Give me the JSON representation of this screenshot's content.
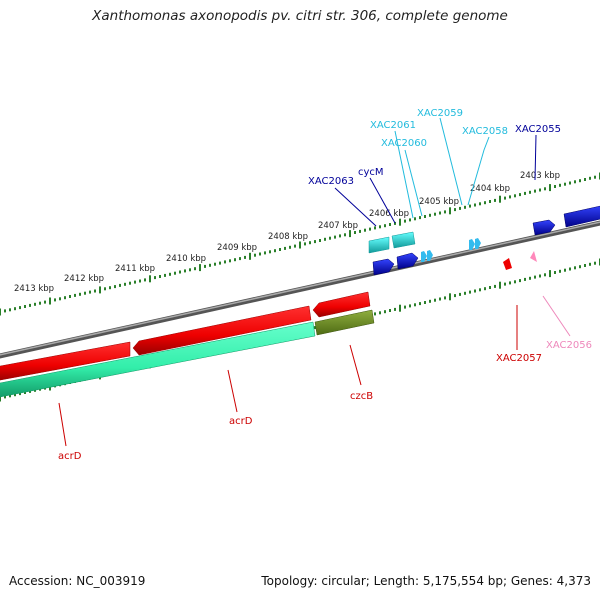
{
  "title": "Xanthomonas axonopodis pv. citri str. 306, complete genome",
  "footer": {
    "accession": "Accession: NC_003919",
    "topology": "Topology: circular; Length: 5,175,554 bp; Genes: 4,373"
  },
  "colors": {
    "backbone": "#808080",
    "tick": "#2a7f2a",
    "red": "#ee0000",
    "darkred": "#aa0000",
    "green": "#33eeaa",
    "olive": "#6b8e23",
    "cyan": "#22dddd",
    "blue": "#0000dd",
    "lightblue": "#33bbee",
    "pink": "#ff88bb",
    "label_blue": "#000099",
    "label_cyan": "#22bbdd",
    "label_red": "#cc0000",
    "label_pink": "#ee88bb"
  },
  "scale_labels": [
    "2413 kbp",
    "2412 kbp",
    "2411 kbp",
    "2410 kbp",
    "2409 kbp",
    "2408 kbp",
    "2407 kbp",
    "2406 kbp",
    "2405 kbp",
    "2404 kbp",
    "2403 kbp"
  ],
  "gene_labels": [
    {
      "id": "XAC2063",
      "text": "XAC2063",
      "color": "label_blue"
    },
    {
      "id": "cycM",
      "text": "cycM",
      "color": "label_blue"
    },
    {
      "id": "XAC2061",
      "text": "XAC2061",
      "color": "label_cyan"
    },
    {
      "id": "XAC2060",
      "text": "XAC2060",
      "color": "label_cyan"
    },
    {
      "id": "XAC2059",
      "text": "XAC2059",
      "color": "label_cyan"
    },
    {
      "id": "XAC2058",
      "text": "XAC2058",
      "color": "label_cyan"
    },
    {
      "id": "XAC2055",
      "text": "XAC2055",
      "color": "label_blue"
    },
    {
      "id": "XAC2057",
      "text": "XAC2057",
      "color": "label_red"
    },
    {
      "id": "XAC2056",
      "text": "XAC2056",
      "color": "label_pink"
    },
    {
      "id": "czcB",
      "text": "czcB",
      "color": "label_red"
    },
    {
      "id": "acrD-1",
      "text": "acrD",
      "color": "label_red"
    },
    {
      "id": "acrD-2",
      "text": "acrD",
      "color": "label_red"
    }
  ]
}
